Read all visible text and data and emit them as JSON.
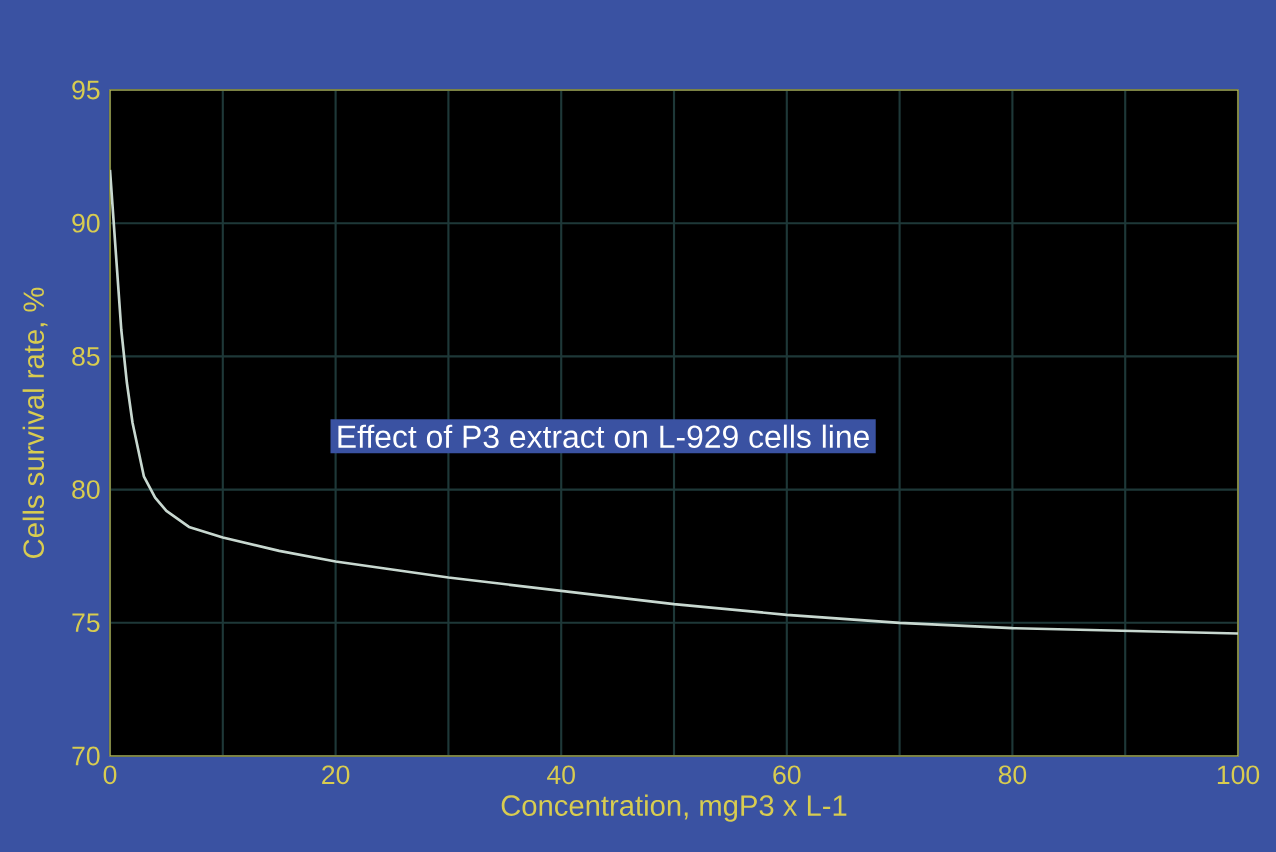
{
  "chart_data": {
    "type": "line",
    "title": "Effect of P3 extract on L-929 cells line",
    "xlabel": "Concentration, mgP3 x L-1",
    "ylabel": "Cells survival rate, %",
    "x": [
      0,
      0.5,
      1,
      1.5,
      2,
      3,
      4,
      5,
      7,
      10,
      15,
      20,
      30,
      40,
      50,
      60,
      70,
      80,
      90,
      100
    ],
    "series": [
      {
        "color": "#c8d8d0",
        "values": [
          92,
          89,
          86,
          84,
          82.5,
          80.5,
          79.7,
          79.2,
          78.6,
          78.2,
          77.7,
          77.3,
          76.7,
          76.2,
          75.7,
          75.3,
          75.0,
          74.8,
          74.7,
          74.6
        ]
      }
    ],
    "xlim": [
      0,
      100
    ],
    "ylim": [
      70,
      95
    ],
    "xticks": [
      0,
      {
        "value": 10,
        "label": null
      },
      20,
      {
        "value": 30,
        "label": null
      },
      40,
      {
        "value": 50,
        "label": null
      },
      60,
      {
        "value": 70,
        "label": null
      },
      80,
      {
        "value": 90,
        "label": null
      },
      100
    ],
    "yticks": [
      70,
      75,
      80,
      85,
      90,
      95
    ],
    "grid": true,
    "marker": "none",
    "line_style": "solid"
  }
}
